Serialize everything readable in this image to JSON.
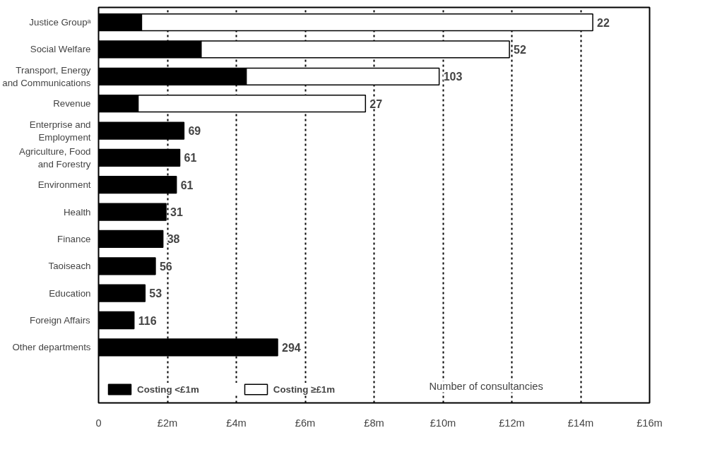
{
  "chart_data": {
    "type": "bar",
    "orientation": "horizontal",
    "stacked": true,
    "categories": [
      "Justice Groupᵃ",
      "Social Welfare",
      "Transport, Energy\nand Communications",
      "Revenue",
      "Enterprise and\nEmployment",
      "Agriculture, Food\nand Forestry",
      "Environment",
      "Health",
      "Finance",
      "Taoiseach",
      "Education",
      "Foreign Affairs",
      "Other departments"
    ],
    "series": [
      {
        "name": "Costing <£1m",
        "color": "#000000",
        "values": [
          1.25,
          2.98,
          4.29,
          1.15,
          2.48,
          2.36,
          2.26,
          1.96,
          1.87,
          1.65,
          1.35,
          1.03,
          5.2
        ]
      },
      {
        "name": "Costing ≥£1m",
        "color": "#ffffff",
        "values": [
          13.1,
          8.95,
          5.6,
          6.6,
          null,
          null,
          null,
          null,
          null,
          null,
          null,
          null,
          null
        ]
      }
    ],
    "xlim": [
      0,
      16
    ],
    "xticks": [
      0,
      {
        "value": 2,
        "label": "£2m"
      },
      {
        "value": 4,
        "label": "£4m"
      },
      {
        "value": 6,
        "label": "£6m"
      },
      {
        "value": 8,
        "label": "£8m"
      },
      {
        "value": 10,
        "label": "£10m"
      },
      {
        "value": 12,
        "label": "£12m"
      },
      {
        "value": 14,
        "label": "£14m"
      },
      {
        "value": 16,
        "label": "£16m"
      }
    ],
    "grid": "x",
    "legend": "bottom",
    "annotations": [
      {
        "text": "22",
        "x": 14.35,
        "y": "Justice Groupᵃ"
      },
      {
        "text": "52",
        "x": 11.93,
        "y": "Social Welfare"
      },
      {
        "text": "103",
        "x": 9.89,
        "y": "Transport, Energy\nand Communications"
      },
      {
        "text": "27",
        "x": 7.75,
        "y": "Revenue"
      },
      {
        "text": "69",
        "x": 2.48,
        "y": "Enterprise and\nEmployment"
      },
      {
        "text": "61",
        "x": 2.36,
        "y": "Agriculture, Food\nand Forestry"
      },
      {
        "text": "61",
        "x": 2.26,
        "y": "Environment"
      },
      {
        "text": "31",
        "x": 1.96,
        "y": "Health"
      },
      {
        "text": "38",
        "x": 1.87,
        "y": "Finance"
      },
      {
        "text": "56",
        "x": 1.65,
        "y": "Taoiseach"
      },
      {
        "text": "53",
        "x": 1.35,
        "y": "Education"
      },
      {
        "text": "116",
        "x": 1.03,
        "y": "Foreign Affairs"
      },
      {
        "text": "294",
        "x": 5.2,
        "y": "Other departments"
      },
      "Number of consultancies"
    ]
  }
}
